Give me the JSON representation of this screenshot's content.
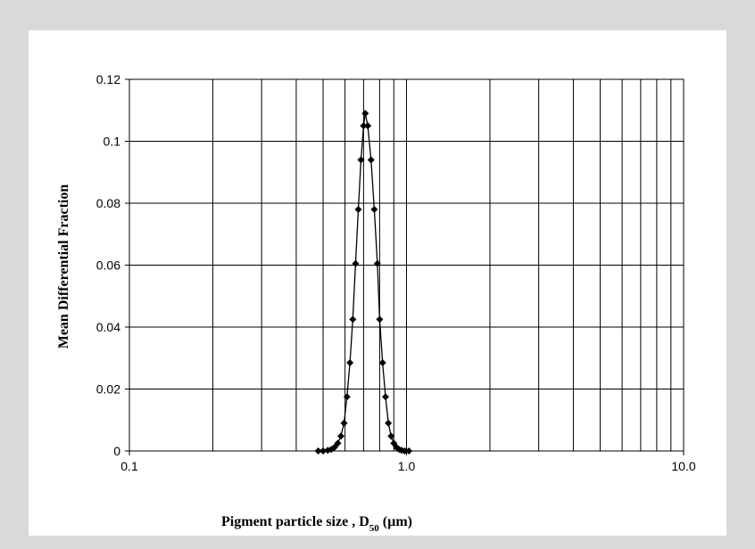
{
  "chart_data": {
    "type": "scatter",
    "title": "",
    "xlabel_main": "Pigment particle size , D",
    "xlabel_sub": "50",
    "xlabel_unit": " (µm)",
    "ylabel": "Mean Differential Fraction",
    "x_scale": "log",
    "xlim": [
      0.1,
      10.0
    ],
    "ylim": [
      0,
      0.12
    ],
    "x_ticks": [
      0.1,
      1.0,
      10.0
    ],
    "x_tick_labels": [
      "0.1",
      "1.0",
      "10.0"
    ],
    "y_ticks": [
      0,
      0.02,
      0.04,
      0.06,
      0.08,
      0.1,
      0.12
    ],
    "y_tick_labels": [
      "0",
      "0.02",
      "0.04",
      "0.06",
      "0.08",
      "0.1",
      "0.12"
    ],
    "grid": true,
    "legend": "none",
    "series": [
      {
        "color": "#000000",
        "marker": "diamond",
        "points": [
          [
            0.48,
            0.0
          ],
          [
            0.5,
            0.0
          ],
          [
            0.52,
            0.0002
          ],
          [
            0.535,
            0.0005
          ],
          [
            0.55,
            0.0012
          ],
          [
            0.565,
            0.0025
          ],
          [
            0.58,
            0.0048
          ],
          [
            0.595,
            0.009
          ],
          [
            0.61,
            0.0175
          ],
          [
            0.625,
            0.0285
          ],
          [
            0.64,
            0.0425
          ],
          [
            0.655,
            0.0605
          ],
          [
            0.67,
            0.078
          ],
          [
            0.685,
            0.094
          ],
          [
            0.7,
            0.105
          ],
          [
            0.71,
            0.109
          ],
          [
            0.725,
            0.105
          ],
          [
            0.745,
            0.094
          ],
          [
            0.765,
            0.078
          ],
          [
            0.785,
            0.0605
          ],
          [
            0.8,
            0.0425
          ],
          [
            0.82,
            0.0285
          ],
          [
            0.84,
            0.0175
          ],
          [
            0.86,
            0.009
          ],
          [
            0.88,
            0.0048
          ],
          [
            0.9,
            0.0025
          ],
          [
            0.92,
            0.0012
          ],
          [
            0.94,
            0.0005
          ],
          [
            0.96,
            0.0002
          ],
          [
            0.985,
            0.0
          ],
          [
            1.02,
            0.0
          ]
        ]
      }
    ]
  }
}
